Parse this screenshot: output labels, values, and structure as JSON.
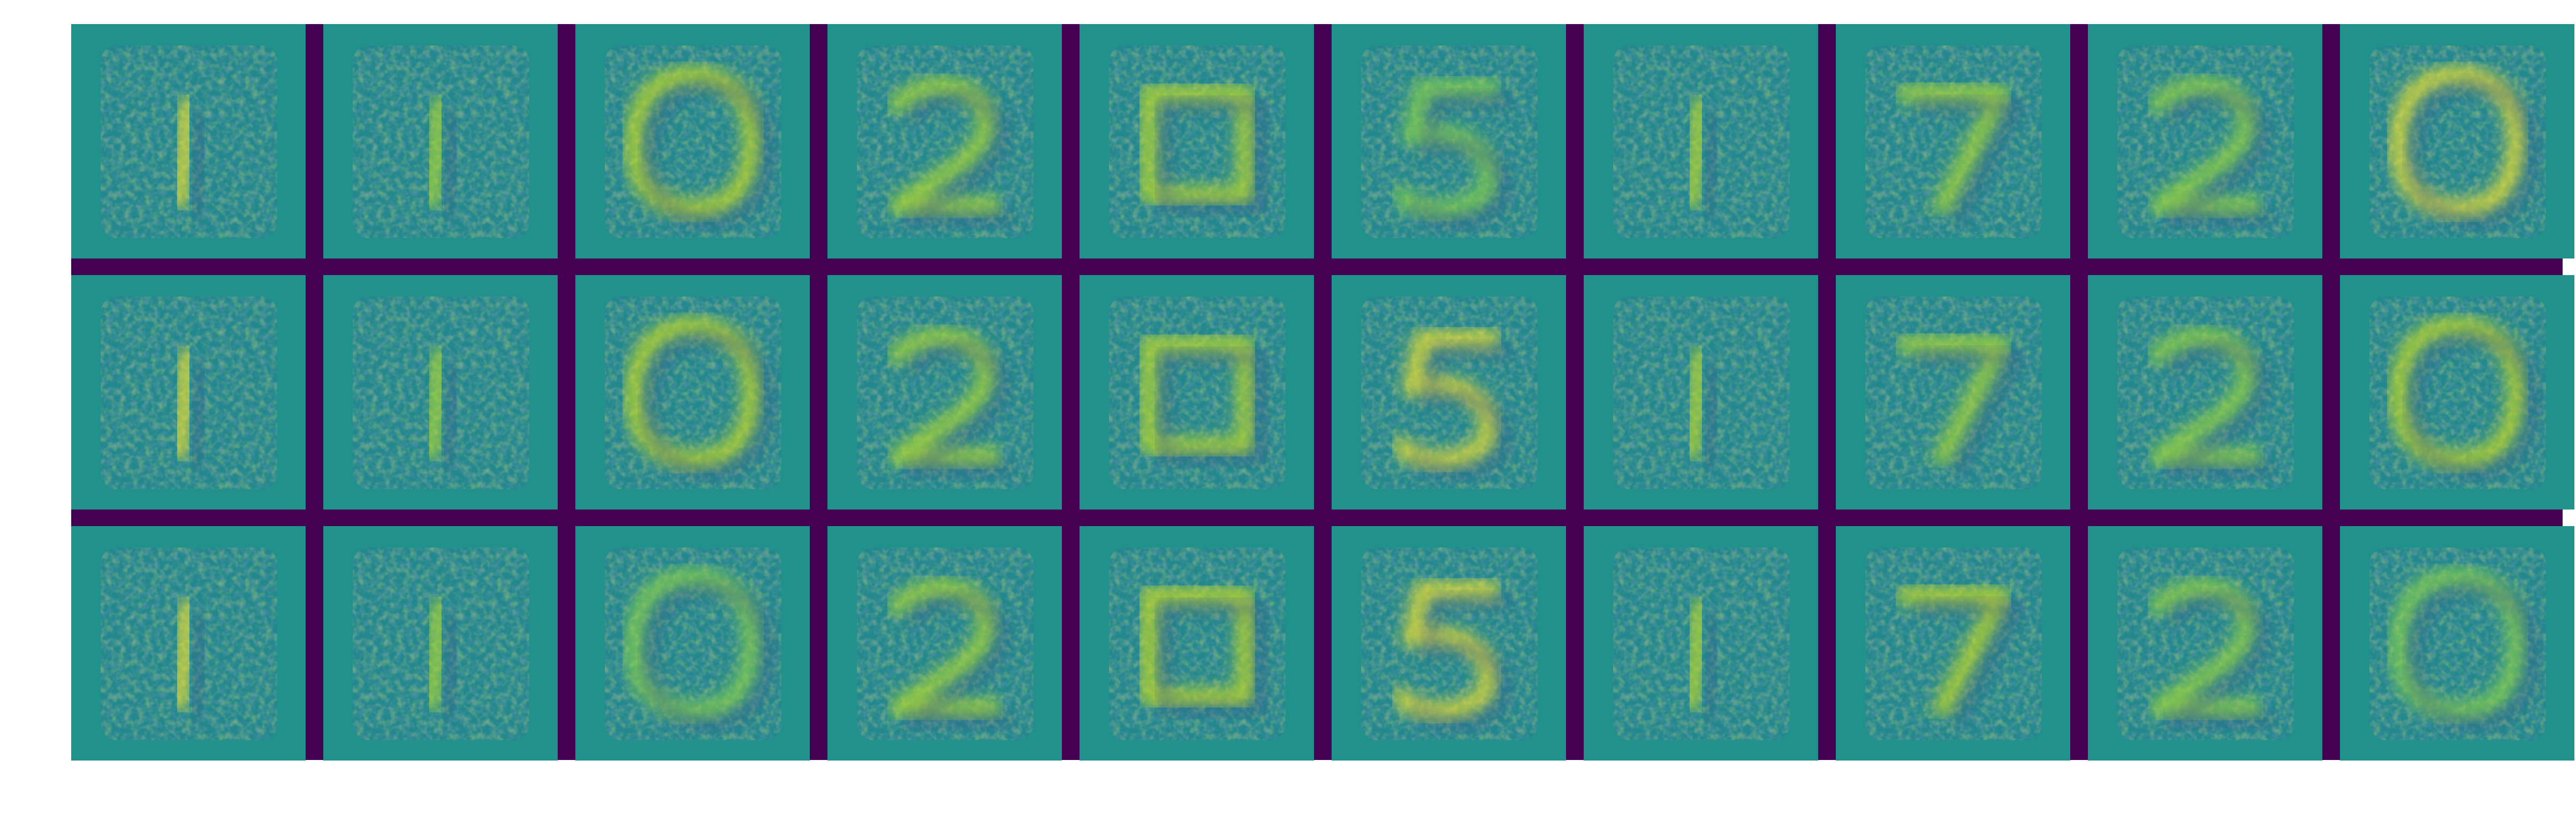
{
  "figure": {
    "rows": 3,
    "columns": 10,
    "colormap": "viridis",
    "separator_color": "#440154",
    "background_color": "#ffffff",
    "tile_background": "#21918c",
    "tiles": [
      [
        {
          "shape": "noise-blob",
          "highlight": "#fde725"
        },
        {
          "shape": "noise-blob",
          "highlight": "#b5de2b"
        },
        {
          "shape": "zero-like",
          "highlight": "#d0e11c"
        },
        {
          "shape": "two-like",
          "highlight": "#b5de2b"
        },
        {
          "shape": "noise-frame",
          "highlight": "#c8e020"
        },
        {
          "shape": "five",
          "highlight": "#8fd744"
        },
        {
          "shape": "noise-blob",
          "highlight": "#c8e020"
        },
        {
          "shape": "seven-like",
          "highlight": "#b5de2b"
        },
        {
          "shape": "two-like",
          "highlight": "#a0da39"
        },
        {
          "shape": "zero-like",
          "highlight": "#fde725"
        }
      ],
      [
        {
          "shape": "noise-blob",
          "highlight": "#fde725"
        },
        {
          "shape": "noise-blob",
          "highlight": "#b5de2b"
        },
        {
          "shape": "zero-like",
          "highlight": "#d0e11c"
        },
        {
          "shape": "two-like",
          "highlight": "#b5de2b"
        },
        {
          "shape": "noise-frame",
          "highlight": "#c8e020"
        },
        {
          "shape": "five",
          "highlight": "#fde725"
        },
        {
          "shape": "noise-blob",
          "highlight": "#c8e020"
        },
        {
          "shape": "seven-like",
          "highlight": "#b5de2b"
        },
        {
          "shape": "two-like",
          "highlight": "#a0da39"
        },
        {
          "shape": "zero-like",
          "highlight": "#d0e11c"
        }
      ],
      [
        {
          "shape": "noise-blob",
          "highlight": "#fde725"
        },
        {
          "shape": "noise-blob",
          "highlight": "#b5de2b"
        },
        {
          "shape": "zero-like",
          "highlight": "#8fd744"
        },
        {
          "shape": "two-like",
          "highlight": "#b5de2b"
        },
        {
          "shape": "noise-frame",
          "highlight": "#d0e11c"
        },
        {
          "shape": "five",
          "highlight": "#fde725"
        },
        {
          "shape": "noise-blob",
          "highlight": "#c8e020"
        },
        {
          "shape": "seven-like",
          "highlight": "#d0e11c"
        },
        {
          "shape": "two-like",
          "highlight": "#a0da39"
        },
        {
          "shape": "zero-like",
          "highlight": "#8fd744"
        }
      ]
    ]
  }
}
